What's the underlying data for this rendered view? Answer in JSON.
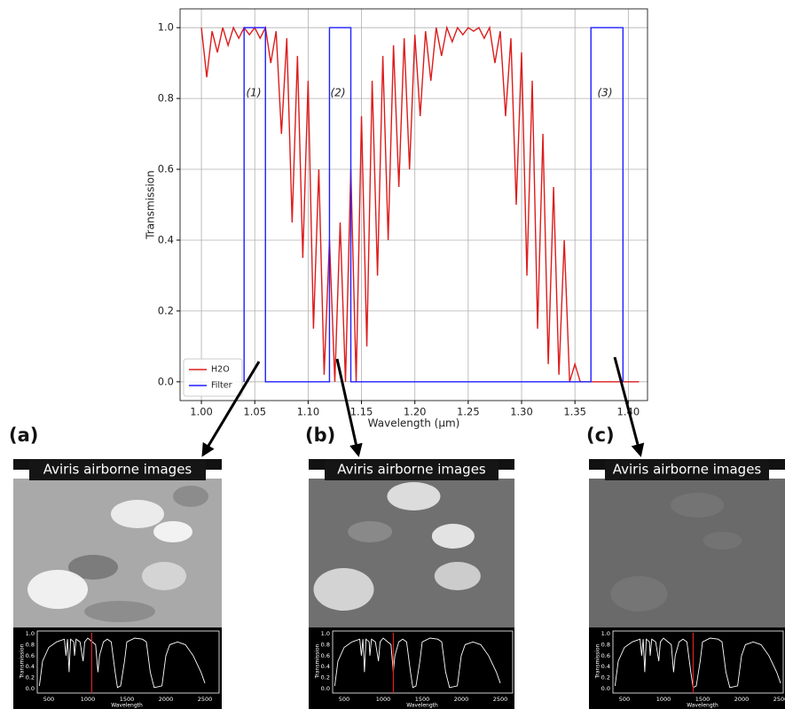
{
  "chart_data": {
    "type": "line",
    "xlabel": "Wavelength (μm)",
    "ylabel": "Transmission",
    "xlim": [
      0.98,
      1.418
    ],
    "ylim": [
      -0.053,
      1.053
    ],
    "xticks": [
      {
        "value": 1.0,
        "label": "1.00"
      },
      {
        "value": 1.05,
        "label": "1.05"
      },
      {
        "value": 1.1,
        "label": "1.10"
      },
      {
        "value": 1.15,
        "label": "1.15"
      },
      {
        "value": 1.2,
        "label": "1.20"
      },
      {
        "value": 1.25,
        "label": "1.25"
      },
      {
        "value": 1.3,
        "label": "1.30"
      },
      {
        "value": 1.35,
        "label": "1.35"
      },
      {
        "value": 1.4,
        "label": "1.40"
      }
    ],
    "yticks": [
      {
        "value": 0.0,
        "label": "0.0"
      },
      0.2,
      0.4,
      0.6,
      0.8,
      {
        "value": 1.0,
        "label": "1.0"
      }
    ],
    "grid": true,
    "legend": "lower left",
    "annotations": [
      "(1)",
      "(2)",
      "(3)"
    ],
    "series": [
      {
        "name": "H2O",
        "color": "#dd1c1c",
        "x": [
          1.0,
          1.005,
          1.01,
          1.015,
          1.02,
          1.025,
          1.03,
          1.035,
          1.04,
          1.045,
          1.05,
          1.055,
          1.06,
          1.065,
          1.07,
          1.075,
          1.08,
          1.085,
          1.09,
          1.095,
          1.1,
          1.105,
          1.11,
          1.115,
          1.12,
          1.125,
          1.13,
          1.135,
          1.14,
          1.145,
          1.15,
          1.155,
          1.16,
          1.165,
          1.17,
          1.175,
          1.18,
          1.185,
          1.19,
          1.195,
          1.2,
          1.205,
          1.21,
          1.215,
          1.22,
          1.225,
          1.23,
          1.235,
          1.24,
          1.245,
          1.25,
          1.255,
          1.26,
          1.265,
          1.27,
          1.275,
          1.28,
          1.285,
          1.29,
          1.295,
          1.3,
          1.305,
          1.31,
          1.315,
          1.32,
          1.325,
          1.33,
          1.335,
          1.34,
          1.345,
          1.35,
          1.355,
          1.36,
          1.365,
          1.37,
          1.375,
          1.38,
          1.385,
          1.39,
          1.395,
          1.4,
          1.405,
          1.41
        ],
        "values": [
          1.0,
          0.86,
          0.99,
          0.93,
          1.0,
          0.95,
          1.0,
          0.97,
          1.0,
          0.98,
          1.0,
          0.97,
          1.0,
          0.9,
          0.99,
          0.7,
          0.97,
          0.45,
          0.92,
          0.35,
          0.85,
          0.15,
          0.6,
          0.02,
          0.4,
          0.0,
          0.45,
          0.0,
          0.6,
          0.0,
          0.75,
          0.1,
          0.85,
          0.3,
          0.92,
          0.4,
          0.95,
          0.55,
          0.97,
          0.6,
          0.98,
          0.75,
          0.99,
          0.85,
          1.0,
          0.92,
          1.0,
          0.96,
          1.0,
          0.98,
          1.0,
          0.99,
          1.0,
          0.97,
          1.0,
          0.9,
          0.99,
          0.75,
          0.97,
          0.5,
          0.93,
          0.3,
          0.85,
          0.15,
          0.7,
          0.05,
          0.55,
          0.02,
          0.4,
          0.0,
          0.05,
          0.0,
          0,
          0,
          0,
          0,
          0,
          0,
          0,
          0,
          0,
          0,
          0
        ]
      },
      {
        "name": "Filter",
        "color": "#1f1fff",
        "x": [
          1.04,
          1.04,
          1.06,
          1.06,
          1.12,
          1.12,
          1.14,
          1.14,
          1.365,
          1.365,
          1.395,
          1.395
        ],
        "values": [
          0,
          1,
          1,
          0,
          0,
          1,
          1,
          0,
          0,
          1,
          1,
          0
        ]
      }
    ]
  },
  "panels": [
    {
      "label": "(a)",
      "banner": "Aviris airborne images",
      "inset": {
        "yticks": [
          "1.0",
          "0.8",
          "0.6",
          "0.4",
          "0.2",
          "0.0"
        ],
        "xticks": [
          "500",
          "1000",
          "1500",
          "2000",
          "2500"
        ],
        "ylabel": "Transmission",
        "xlabel": "Wavelength"
      }
    },
    {
      "label": "(b)",
      "banner": "Aviris airborne images",
      "inset": {
        "yticks": [
          "1.0",
          "0.8",
          "0.6",
          "0.4",
          "0.2",
          "0.0"
        ],
        "xticks": [
          "500",
          "1000",
          "1500",
          "2000",
          "2500"
        ],
        "ylabel": "Transmission",
        "xlabel": "Wavelength"
      }
    },
    {
      "label": "(c)",
      "banner": "Aviris airborne images",
      "inset": {
        "yticks": [
          "1.0",
          "0.8",
          "0.6",
          "0.4",
          "0.2",
          "0.0"
        ],
        "xticks": [
          "500",
          "1000",
          "1500",
          "2000",
          "2500"
        ],
        "ylabel": "Transmission",
        "xlabel": "Wavelength"
      }
    }
  ]
}
